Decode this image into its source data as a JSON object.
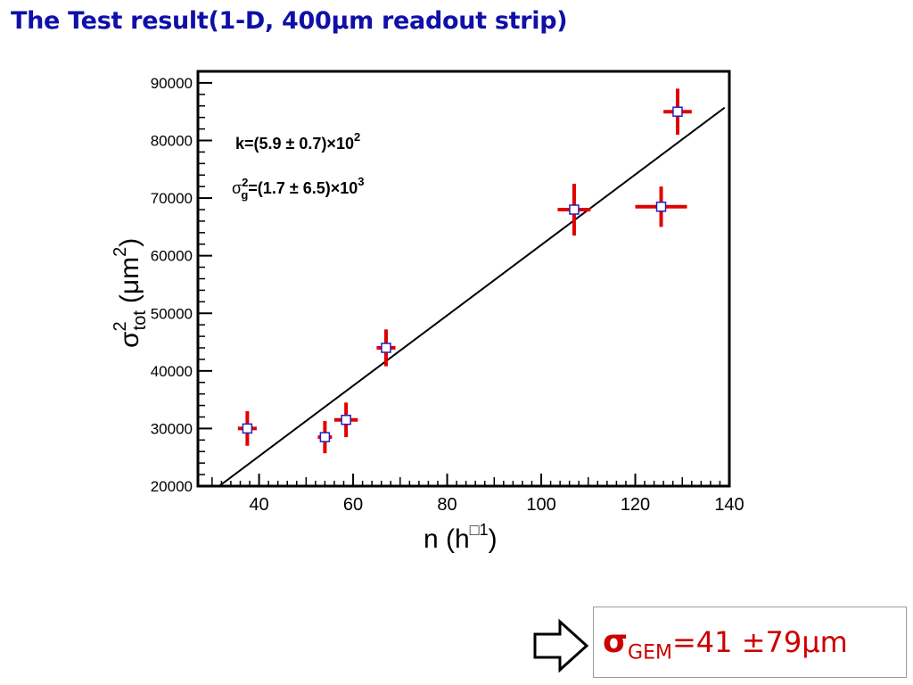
{
  "slide": {
    "title": "The Test result(1-D, 400μm readout strip)"
  },
  "chart_data": {
    "type": "scatter",
    "xlabel_main": "n (h",
    "xlabel_sup": "□1",
    "xlabel_close": ")",
    "ylabel_main": "σ",
    "ylabel_sup": "2",
    "ylabel_sub": "tot",
    "ylabel_unit": "(μm",
    "ylabel_unit_sup": "2",
    "ylabel_unit_close": ")",
    "xlim": [
      27,
      140
    ],
    "ylim": [
      20000,
      92000
    ],
    "x_ticks": [
      40,
      60,
      80,
      100,
      120,
      140
    ],
    "y_ticks": [
      20000,
      30000,
      40000,
      50000,
      60000,
      70000,
      80000,
      90000
    ],
    "points": [
      {
        "x": 37.5,
        "y": 30000,
        "xerr": 2.0,
        "yerr": 3000
      },
      {
        "x": 54.0,
        "y": 28500,
        "xerr": 1.5,
        "yerr": 2800
      },
      {
        "x": 58.5,
        "y": 31500,
        "xerr": 2.5,
        "yerr": 3000
      },
      {
        "x": 67.0,
        "y": 44000,
        "xerr": 2.0,
        "yerr": 3200
      },
      {
        "x": 107.0,
        "y": 68000,
        "xerr": 3.5,
        "yerr": 4500
      },
      {
        "x": 125.5,
        "y": 68500,
        "xerr": 5.5,
        "yerr": 3500
      },
      {
        "x": 129.0,
        "y": 85000,
        "xerr": 3.0,
        "yerr": 4000
      }
    ],
    "fit_line": {
      "x": [
        31.5,
        139
      ],
      "y": [
        20000,
        85700
      ]
    },
    "annotations": {
      "k_line": "k=(5.9 ± 0.7)×10",
      "k_sup": "2",
      "sg_sym": "σ",
      "sg_sup": "2",
      "sg_sub": "g",
      "sg_line": "=(1.7 ± 6.5)×10",
      "sg_sup2": "3"
    },
    "colors": {
      "errorbar": "#e00000",
      "marker": "#2020c0",
      "line": "#000000"
    }
  },
  "result": {
    "symbol": "σ",
    "subscript": "GEM",
    "value_text": "=41 ±79μm"
  }
}
